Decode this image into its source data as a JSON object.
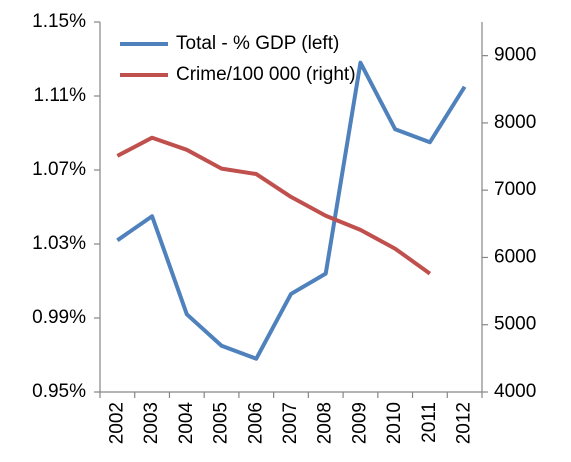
{
  "chart_data": {
    "type": "line",
    "categories": [
      "2002",
      "2003",
      "2004",
      "2005",
      "2006",
      "2007",
      "2008",
      "2009",
      "2010",
      "2011",
      "2012"
    ],
    "series": [
      {
        "name": "Total - % GDP (left)",
        "color": "#4f81bd",
        "axis": "y",
        "values": [
          1.032,
          1.045,
          0.992,
          0.975,
          0.968,
          1.003,
          1.014,
          1.128,
          1.092,
          1.085,
          1.115
        ]
      },
      {
        "name": "Crime/100 000 (right)",
        "color": "#c0504d",
        "axis": "y2",
        "values": [
          7510,
          7780,
          7600,
          7320,
          7240,
          6900,
          6620,
          6410,
          6130,
          5760,
          null
        ]
      }
    ],
    "ylim": [
      0.95,
      1.15
    ],
    "yticks": [
      {
        "value": 0.95,
        "label": "0.95%"
      },
      {
        "value": 0.99,
        "label": "0.99%"
      },
      {
        "value": 1.03,
        "label": "1.03%"
      },
      {
        "value": 1.07,
        "label": "1.07%"
      },
      {
        "value": 1.11,
        "label": "1.11%"
      },
      {
        "value": 1.15,
        "label": "1.15%"
      }
    ],
    "y2lim": [
      4000,
      9500
    ],
    "y2ticks": [
      4000,
      5000,
      6000,
      7000,
      8000,
      9000
    ],
    "legend": "upper left",
    "grid": false
  }
}
